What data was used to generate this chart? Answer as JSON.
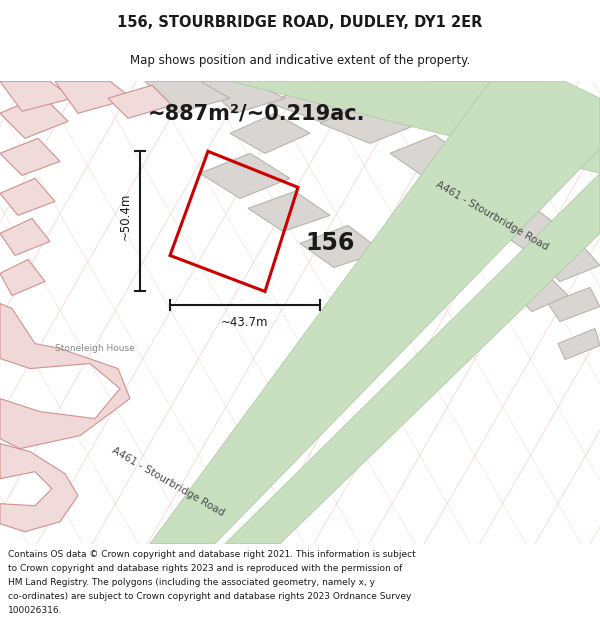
{
  "title_line1": "156, STOURBRIDGE ROAD, DUDLEY, DY1 2ER",
  "title_line2": "Map shows position and indicative extent of the property.",
  "area_text": "~887m²/~0.219ac.",
  "label_156": "156",
  "label_width": "~43.7m",
  "label_height": "~50.4m",
  "road_label_upper": "A461 - Stourbridge Road",
  "road_label_lower": "A461 - Stourbridge Road",
  "stoneleigh_label": "Stoneleigh House",
  "footer_text": "Contains OS data © Crown copyright and database right 2021. This information is subject to Crown copyright and database rights 2023 and is reproduced with the permission of HM Land Registry. The polygons (including the associated geometry, namely x, y co-ordinates) are subject to Crown copyright and database rights 2023 Ordnance Survey 100026316.",
  "map_bg": "#edecea",
  "road_green_color": "#c8dfc0",
  "road_green_edge": "#a8c8a0",
  "building_gray_fill": "#d8d5d2",
  "building_gray_edge": "#b8b4b0",
  "building_red_fill": "#f0dada",
  "building_red_edge": "#d09090",
  "stoneleigh_fill": "#f0d8d8",
  "stoneleigh_edge": "#d09090",
  "red_poly_color": "#cc0000",
  "dim_color": "#1a1a1a",
  "text_color": "#1a1a1a",
  "road_text_color": "#4a4a4a",
  "gray_line_color": "#c8b8b8",
  "pink_line_color": "#e8b0b0"
}
